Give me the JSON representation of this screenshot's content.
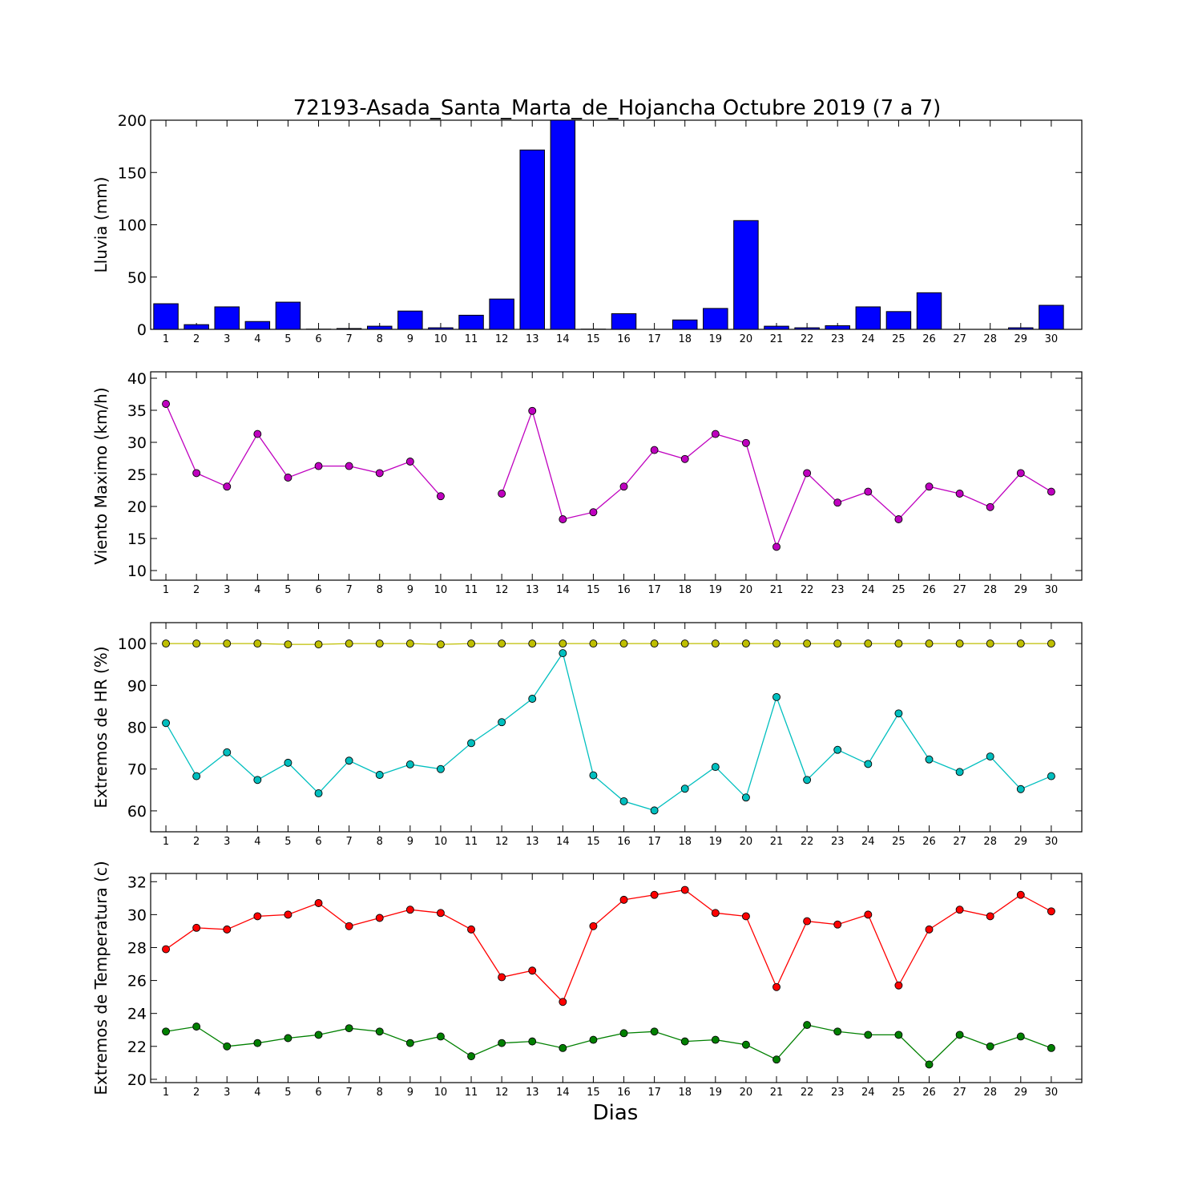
{
  "title": "72193-Asada_Santa_Marta_de_Hojancha Octubre 2019  (7 a 7)",
  "xlabel": "Dias",
  "chart_data": [
    {
      "type": "bar",
      "ylabel": "Lluvia (mm)",
      "ylim": [
        0,
        200
      ],
      "yticks": [
        0,
        50,
        100,
        150,
        200
      ],
      "categories": [
        "1",
        "2",
        "3",
        "4",
        "5",
        "6",
        "7",
        "8",
        "9",
        "10",
        "11",
        "12",
        "13",
        "14",
        "15",
        "16",
        "17",
        "18",
        "19",
        "20",
        "21",
        "22",
        "23",
        "24",
        "25",
        "26",
        "27",
        "28",
        "29",
        "30"
      ],
      "series": [
        {
          "color": "#0000ff",
          "values": [
            24.5,
            4.5,
            21.5,
            7.5,
            26,
            0.2,
            0.8,
            3,
            17.5,
            1.5,
            13.5,
            29,
            171.5,
            200,
            0.2,
            15,
            0,
            9,
            20,
            104,
            3,
            1.5,
            3.5,
            21.5,
            17,
            35,
            0,
            0,
            1.5,
            23
          ]
        }
      ],
      "grid": false
    },
    {
      "type": "line",
      "ylabel": "Viento Maximo (km/h)",
      "ylim": [
        8.5,
        41
      ],
      "yticks": [
        10,
        15,
        20,
        25,
        30,
        35,
        40
      ],
      "x": [
        1,
        2,
        3,
        4,
        5,
        6,
        7,
        8,
        9,
        10,
        11,
        12,
        13,
        14,
        15,
        16,
        17,
        18,
        19,
        20,
        21,
        22,
        23,
        24,
        25,
        26,
        27,
        28,
        29,
        30
      ],
      "series": [
        {
          "color": "#bf00bf",
          "values": [
            36,
            25.2,
            23.1,
            31.3,
            24.5,
            26.3,
            26.3,
            25.2,
            27,
            21.6,
            null,
            22,
            34.9,
            18,
            19.1,
            23.1,
            28.8,
            27.4,
            31.3,
            29.9,
            13.7,
            25.2,
            20.6,
            22.3,
            18,
            23.1,
            22,
            19.9,
            25.2,
            22.3
          ]
        }
      ],
      "grid": false
    },
    {
      "type": "line",
      "ylabel": "Extremos de HR (%)",
      "ylim": [
        55,
        105
      ],
      "yticks": [
        60,
        70,
        80,
        90,
        100
      ],
      "x": [
        1,
        2,
        3,
        4,
        5,
        6,
        7,
        8,
        9,
        10,
        11,
        12,
        13,
        14,
        15,
        16,
        17,
        18,
        19,
        20,
        21,
        22,
        23,
        24,
        25,
        26,
        27,
        28,
        29,
        30
      ],
      "series": [
        {
          "color": "#bfbf00",
          "values": [
            100,
            100,
            100,
            100,
            99.8,
            99.8,
            100,
            100,
            100,
            99.8,
            100,
            100,
            100,
            100,
            100,
            100,
            100,
            100,
            100,
            100,
            100,
            100,
            100,
            100,
            100,
            100,
            100,
            100,
            100,
            100
          ]
        },
        {
          "color": "#00bfbf",
          "values": [
            81,
            68.3,
            74,
            67.4,
            71.5,
            64.2,
            72,
            68.6,
            71.1,
            70,
            76.2,
            81.2,
            86.8,
            97.7,
            68.5,
            62.3,
            60.1,
            65.3,
            70.5,
            63.2,
            87.2,
            67.4,
            74.6,
            71.2,
            83.3,
            72.3,
            69.3,
            73,
            65.2,
            68.3
          ]
        }
      ],
      "grid": false
    },
    {
      "type": "line",
      "ylabel": "Extremos de Temperatura (c)",
      "ylim": [
        19.8,
        32.5
      ],
      "yticks": [
        20,
        22,
        24,
        26,
        28,
        30,
        32
      ],
      "x": [
        1,
        2,
        3,
        4,
        5,
        6,
        7,
        8,
        9,
        10,
        11,
        12,
        13,
        14,
        15,
        16,
        17,
        18,
        19,
        20,
        21,
        22,
        23,
        24,
        25,
        26,
        27,
        28,
        29,
        30
      ],
      "series": [
        {
          "color": "#ff0000",
          "values": [
            27.9,
            29.2,
            29.1,
            29.9,
            30,
            30.7,
            29.3,
            29.8,
            30.3,
            30.1,
            29.1,
            26.2,
            26.6,
            24.7,
            29.3,
            30.9,
            31.2,
            31.5,
            30.1,
            29.9,
            25.6,
            29.6,
            29.4,
            30,
            25.7,
            29.1,
            30.3,
            29.9,
            31.2,
            30.2
          ]
        },
        {
          "color": "#008000",
          "values": [
            22.9,
            23.2,
            22,
            22.2,
            22.5,
            22.7,
            23.1,
            22.9,
            22.2,
            22.6,
            21.4,
            22.2,
            22.3,
            21.9,
            22.4,
            22.8,
            22.9,
            22.3,
            22.4,
            22.1,
            21.2,
            23.3,
            22.9,
            22.7,
            22.7,
            20.9,
            22.7,
            22,
            22.6,
            21.9
          ]
        }
      ],
      "grid": false
    }
  ]
}
